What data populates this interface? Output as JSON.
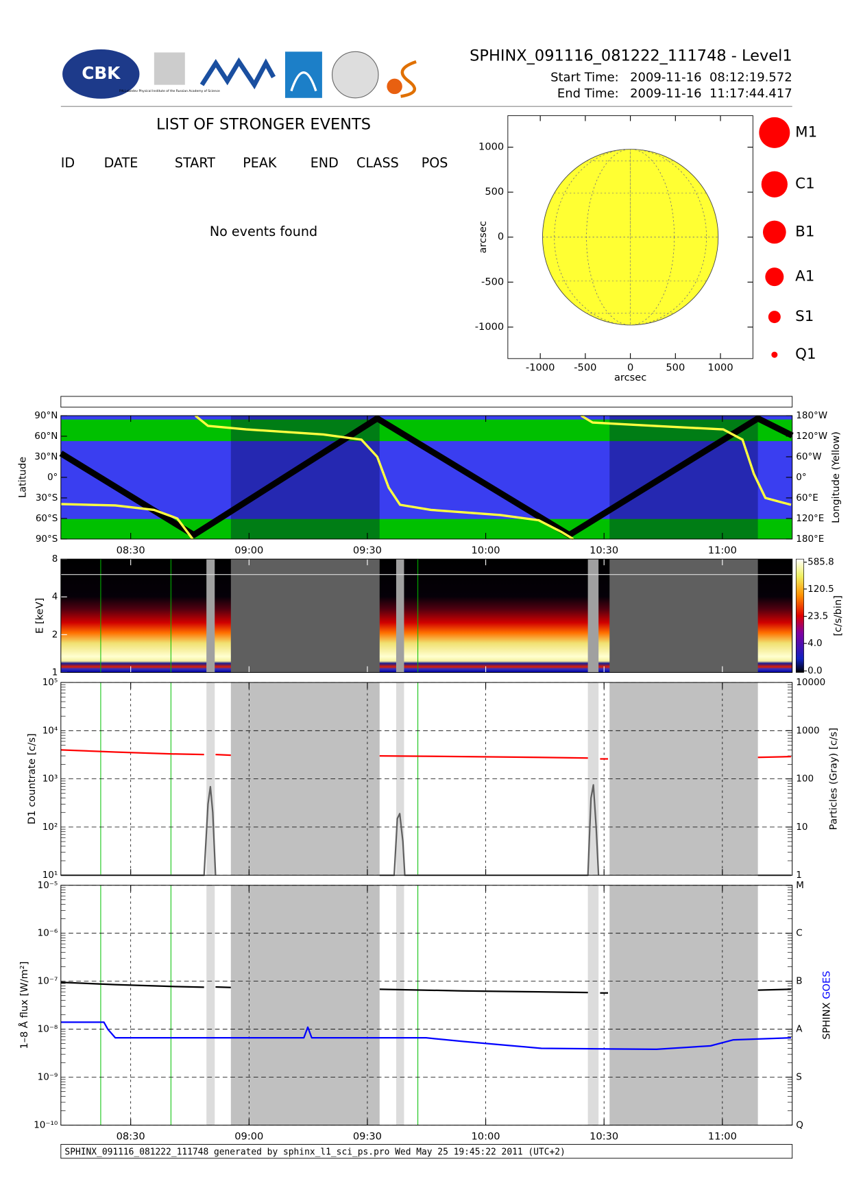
{
  "header": {
    "title": "SPHINX_091116_081222_111748 - Level1",
    "start_label": "Start Time:",
    "start_date": "2009-11-16",
    "start_time": "08:12:19.572",
    "end_label": "End Time:",
    "end_date": "2009-11-16",
    "end_time": "11:17:44.417",
    "logo_cbk": "CBK",
    "logo_lebedev": "P.N.Lebedev Physical Institute of the Russian Academy of Science"
  },
  "events": {
    "title": "LIST OF STRONGER EVENTS",
    "columns": [
      "ID",
      "DATE",
      "START",
      "PEAK",
      "END",
      "CLASS",
      "POS"
    ],
    "message": "No events found"
  },
  "classes": [
    "M1",
    "C1",
    "B1",
    "A1",
    "S1",
    "Q1"
  ],
  "footer": "SPHINX_091116_081222_111748 generated by sphinx_l1_sci_ps.pro Wed May 25 19:45:22 2011 (UTC+2)",
  "chart_data": [
    {
      "type": "disk",
      "xlabel": "arcsec",
      "ylabel": "arcsec",
      "xlim": [
        -1360,
        1360
      ],
      "ylim": [
        -1350,
        1350
      ],
      "xticks": [
        -1000,
        -500,
        0,
        500,
        1000
      ],
      "yticks": [
        -1000,
        -500,
        0,
        500,
        1000
      ],
      "disk_radius": 975,
      "color": "#ffff33"
    },
    {
      "type": "line",
      "ylabel": "Latitude",
      "y2label": "Longitude (Yellow)",
      "xlim": [
        492.3,
        677.7
      ],
      "ylim": [
        -90,
        90
      ],
      "y2lim": [
        -180,
        180
      ],
      "xticks": [
        {
          "value": 510,
          "label": "08:30"
        },
        {
          "value": 540,
          "label": "09:00"
        },
        {
          "value": 570,
          "label": "09:30"
        },
        {
          "value": 600,
          "label": "10:00"
        },
        {
          "value": 630,
          "label": "10:30"
        },
        {
          "value": 660,
          "label": "11:00"
        }
      ],
      "yticks": [
        {
          "value": 90,
          "label": "90°N"
        },
        {
          "value": 60,
          "label": "60°N"
        },
        {
          "value": 30,
          "label": "30°N"
        },
        {
          "value": 0,
          "label": "0°"
        },
        {
          "value": -30,
          "label": "30°S"
        },
        {
          "value": -60,
          "label": "60°S"
        },
        {
          "value": -90,
          "label": "90°S"
        }
      ],
      "y2ticks": [
        {
          "value": 180,
          "label": "180°W"
        },
        {
          "value": 120,
          "label": "120°W"
        },
        {
          "value": 60,
          "label": "60°W"
        },
        {
          "value": 0,
          "label": "0°"
        },
        {
          "value": -60,
          "label": "60°E"
        },
        {
          "value": -120,
          "label": "120°E"
        },
        {
          "value": -180,
          "label": "180°E"
        }
      ],
      "series": [
        {
          "color": "#000000",
          "x": [
            492.3,
            526.0,
            572.5,
            621.2,
            669.0,
            677.7
          ],
          "values": [
            35,
            -84,
            86,
            -84,
            86,
            61
          ]
        },
        {
          "color": "#ffff40",
          "axis": "y2",
          "x": [
            492.3,
            506.1,
            515.9,
            521.8,
            525.7,
            526.0,
            526.4,
            529.6,
            539.3,
            558.8,
            568.5,
            572.5,
            575.4,
            578.3,
            586.1,
            603.7,
            613.4,
            619.3,
            622.2,
            623.2,
            624.2,
            627.1,
            642.7,
            660.2,
            665.1,
            668.0,
            670.9,
            677.4
          ],
          "values": [
            -78,
            -82,
            -95,
            -120,
            -180,
            null,
            180,
            150,
            140,
            125,
            110,
            60,
            -30,
            -80,
            -95,
            -110,
            -125,
            -160,
            -180,
            null,
            180,
            160,
            150,
            140,
            110,
            10,
            -60,
            -80
          ]
        }
      ]
    },
    {
      "type": "spectrogram",
      "ylabel": "E [keV]",
      "log": true,
      "xlim": [
        492.3,
        677.7
      ],
      "ylim": [
        1,
        8
      ],
      "yticks": [
        1,
        2,
        4,
        8
      ],
      "colorbar": {
        "label": "[c/s/bin]",
        "ticks": [
          {
            "value": 0,
            "label": "0.0"
          },
          {
            "value": 4,
            "label": "4.0"
          },
          23.5,
          120.5,
          585.8
        ]
      },
      "gaps": [
        [
          535.4,
          573.1
        ],
        [
          631.4,
          669.0
        ]
      ],
      "particle_intervals": [
        [
          529.2,
          531.3
        ],
        [
          577.3,
          579.3
        ],
        [
          625.9,
          628.6
        ]
      ],
      "markers": [
        502.4,
        520.2,
        582.8
      ]
    },
    {
      "type": "line",
      "ylabel": "D1 countrate [c/s]",
      "y2label": "Particles (Gray) [c/s]",
      "log": true,
      "xlim": [
        492.3,
        677.7
      ],
      "ylim": [
        10,
        100000
      ],
      "y2lim": [
        1,
        10000
      ],
      "yticks": [
        {
          "value": 10,
          "label": "10¹"
        },
        {
          "value": 100,
          "label": "10²"
        },
        {
          "value": 1000,
          "label": "10³"
        },
        {
          "value": 10000,
          "label": "10⁴"
        },
        {
          "value": 100000,
          "label": "10⁵"
        }
      ],
      "y2ticks": [
        1,
        10,
        100,
        1000,
        10000
      ],
      "series": [
        {
          "color": "#ff0000",
          "x": [
            492.3,
            506.1,
            519.8,
            528.6,
            529.6,
            531.5,
            535.4,
            554.9,
            573.1,
            594.0,
            613.4,
            625.9,
            628.0,
            629.0,
            631.0,
            648.5,
            669.0,
            677.4
          ],
          "values": [
            4000,
            3600,
            3300,
            3200,
            null,
            3200,
            3100,
            null,
            3000,
            2900,
            2800,
            2700,
            null,
            2600,
            2600,
            null,
            2800,
            2900
          ]
        },
        {
          "color": "#606060",
          "axis": "y2",
          "x": [
            492.3,
            528.6,
            529.6,
            530.2,
            530.8,
            531.5,
            554.9,
            573.1,
            576.8,
            577.6,
            578.2,
            579.0,
            579.5,
            582.5,
            625.9,
            626.7,
            627.3,
            628.0,
            628.6,
            648.5,
            669.0,
            677.4
          ],
          "values": [
            1,
            1,
            30,
            69,
            20,
            1,
            null,
            1,
            1,
            15,
            19,
            5,
            1,
            1,
            1,
            40,
            75,
            10,
            1,
            null,
            1,
            1
          ]
        }
      ]
    },
    {
      "type": "line",
      "ylabel": "1–8 Å flux [W/m²]",
      "log": true,
      "xlim": [
        492.3,
        677.7
      ],
      "ylim": [
        1e-10,
        1e-05
      ],
      "y2lim": [
        1e-10,
        1e-05
      ],
      "xticks": [
        {
          "value": 510,
          "label": "08:30"
        },
        {
          "value": 540,
          "label": "09:00"
        },
        {
          "value": 570,
          "label": "09:30"
        },
        {
          "value": 600,
          "label": "10:00"
        },
        {
          "value": 630,
          "label": "10:30"
        },
        {
          "value": 660,
          "label": "11:00"
        }
      ],
      "yticks": [
        {
          "value": 1e-10,
          "label": "10⁻¹⁰"
        },
        {
          "value": 1e-09,
          "label": "10⁻⁹"
        },
        {
          "value": 1e-08,
          "label": "10⁻⁸"
        },
        {
          "value": 1e-07,
          "label": "10⁻⁷"
        },
        {
          "value": 1e-06,
          "label": "10⁻⁶"
        },
        {
          "value": 1e-05,
          "label": "10⁻⁵"
        }
      ],
      "y2ticks": [
        {
          "value": 1e-05,
          "label": "M"
        },
        {
          "value": 1e-06,
          "label": "C"
        },
        {
          "value": 1e-07,
          "label": "B"
        },
        {
          "value": 1e-08,
          "label": "A"
        },
        {
          "value": 1e-09,
          "label": "S"
        },
        {
          "value": 1e-10,
          "label": "Q"
        }
      ],
      "series": [
        {
          "name": "SPHINX",
          "color": "#000000",
          "x": [
            492.3,
            506.1,
            519.8,
            528.6,
            529.6,
            531.5,
            535.4,
            554.9,
            573.1,
            594.0,
            613.4,
            625.9,
            628.0,
            629.0,
            631.0,
            648.5,
            669.0,
            677.4
          ],
          "values": [
            9.5e-08,
            8.5e-08,
            7.8e-08,
            7.5e-08,
            null,
            7.6e-08,
            7.4e-08,
            null,
            6.8e-08,
            6.3e-08,
            6e-08,
            5.8e-08,
            null,
            5.7e-08,
            5.7e-08,
            null,
            6.5e-08,
            6.8e-08
          ]
        },
        {
          "name": "GOES",
          "color": "#0000ff",
          "x": [
            492.3,
            503.2,
            504.2,
            506.1,
            553.9,
            554.9,
            555.9,
            584.9,
            594.6,
            614.1,
            643.3,
            657.0,
            662.8,
            677.4
          ],
          "values": [
            1.4e-08,
            1.4e-08,
            1e-08,
            6.6e-09,
            6.6e-09,
            1.1e-08,
            6.6e-09,
            6.6e-09,
            5.5e-09,
            4e-09,
            3.8e-09,
            4.5e-09,
            6e-09,
            6.6e-09
          ]
        }
      ]
    }
  ]
}
